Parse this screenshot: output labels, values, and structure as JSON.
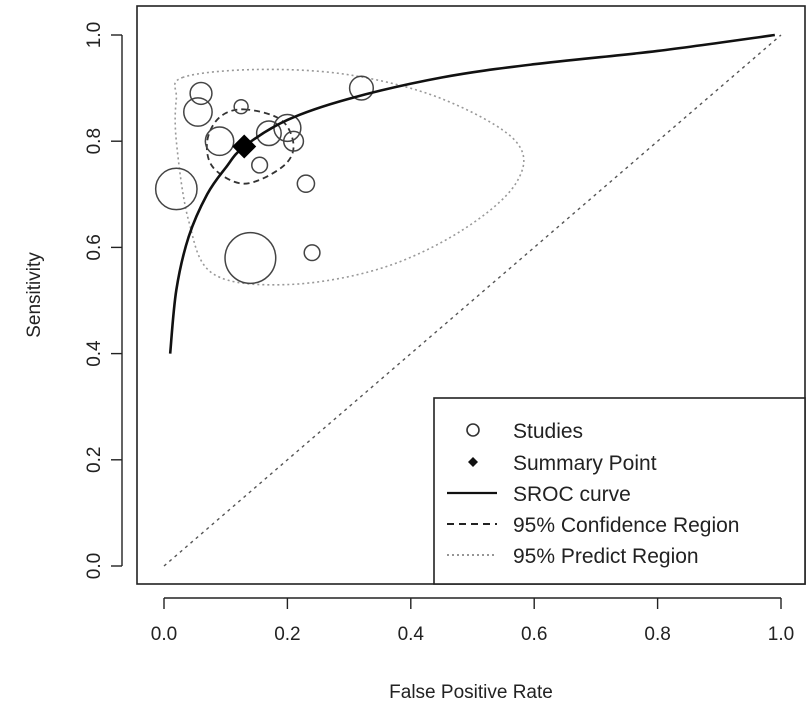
{
  "chart_data": {
    "type": "scatter",
    "title": "",
    "xlabel": "False Positive Rate",
    "ylabel": "Sensitivity",
    "xlim": [
      0,
      1
    ],
    "ylim": [
      0,
      1
    ],
    "x_ticks": [
      "0.0",
      "0.2",
      "0.4",
      "0.6",
      "0.8",
      "1.0"
    ],
    "y_ticks": [
      "0.0",
      "0.2",
      "0.4",
      "0.6",
      "0.8",
      "1.0"
    ],
    "grid": false,
    "legend_position": "bottom-right",
    "legend": [
      {
        "label": "Studies",
        "symbol": "open-circle"
      },
      {
        "label": "Summary Point",
        "symbol": "filled-diamond"
      },
      {
        "label": "SROC curve",
        "symbol": "solid-line"
      },
      {
        "label": "95% Confidence Region",
        "symbol": "dashed-line"
      },
      {
        "label": "95% Predict Region",
        "symbol": "dotted-line"
      }
    ],
    "studies": [
      {
        "fpr": 0.06,
        "sens": 0.89,
        "weight": 0.4
      },
      {
        "fpr": 0.055,
        "sens": 0.855,
        "weight": 0.8
      },
      {
        "fpr": 0.09,
        "sens": 0.8,
        "weight": 0.8
      },
      {
        "fpr": 0.02,
        "sens": 0.71,
        "weight": 2.0
      },
      {
        "fpr": 0.14,
        "sens": 0.58,
        "weight": 3.2
      },
      {
        "fpr": 0.125,
        "sens": 0.865,
        "weight": 0.1
      },
      {
        "fpr": 0.17,
        "sens": 0.815,
        "weight": 0.55
      },
      {
        "fpr": 0.2,
        "sens": 0.825,
        "weight": 0.7
      },
      {
        "fpr": 0.21,
        "sens": 0.8,
        "weight": 0.3
      },
      {
        "fpr": 0.155,
        "sens": 0.755,
        "weight": 0.15
      },
      {
        "fpr": 0.23,
        "sens": 0.72,
        "weight": 0.2
      },
      {
        "fpr": 0.24,
        "sens": 0.59,
        "weight": 0.15
      },
      {
        "fpr": 0.32,
        "sens": 0.9,
        "weight": 0.5
      }
    ],
    "summary_point": {
      "fpr": 0.13,
      "sens": 0.79
    },
    "sroc_curve": [
      [
        0.01,
        0.4
      ],
      [
        0.02,
        0.52
      ],
      [
        0.04,
        0.62
      ],
      [
        0.07,
        0.7
      ],
      [
        0.1,
        0.75
      ],
      [
        0.13,
        0.79
      ],
      [
        0.2,
        0.84
      ],
      [
        0.3,
        0.88
      ],
      [
        0.45,
        0.92
      ],
      [
        0.6,
        0.945
      ],
      [
        0.8,
        0.97
      ],
      [
        0.99,
        1.0
      ]
    ],
    "confidence_region": [
      [
        0.13,
        0.86
      ],
      [
        0.19,
        0.84
      ],
      [
        0.21,
        0.79
      ],
      [
        0.19,
        0.75
      ],
      [
        0.13,
        0.72
      ],
      [
        0.08,
        0.75
      ],
      [
        0.07,
        0.8
      ],
      [
        0.09,
        0.845
      ]
    ],
    "prediction_region": [
      [
        0.03,
        0.92
      ],
      [
        0.15,
        0.935
      ],
      [
        0.3,
        0.925
      ],
      [
        0.45,
        0.88
      ],
      [
        0.57,
        0.8
      ],
      [
        0.57,
        0.72
      ],
      [
        0.48,
        0.63
      ],
      [
        0.35,
        0.56
      ],
      [
        0.2,
        0.53
      ],
      [
        0.08,
        0.55
      ],
      [
        0.04,
        0.65
      ],
      [
        0.02,
        0.8
      ],
      [
        0.02,
        0.88
      ]
    ],
    "diagonal": [
      [
        0,
        0
      ],
      [
        1,
        1
      ]
    ]
  }
}
